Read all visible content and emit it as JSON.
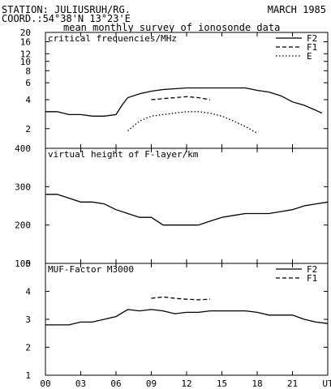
{
  "header": {
    "station": "STATION: JULIUSRUH/RG.",
    "coord": "COORD.:54°38'N 13°23'E",
    "date": "MARCH 1985",
    "subtitle": "mean monthly survey of ionosonde data"
  },
  "chart_data": [
    {
      "type": "line",
      "title": "critical frequencies/MHz",
      "yscale": "log",
      "ylim": [
        1.25,
        20
      ],
      "yticks": [
        2,
        4,
        6,
        8,
        10,
        12,
        16,
        20
      ],
      "xlim": [
        0,
        24
      ],
      "xticks": [
        0,
        3,
        6,
        9,
        12,
        15,
        18,
        21,
        24
      ],
      "xticklabels": [
        "00",
        "03",
        "06",
        "09",
        "12",
        "15",
        "18",
        "21",
        "UT"
      ],
      "legend_position": "top-right",
      "series": [
        {
          "name": "F2",
          "style": "solid",
          "x": [
            0,
            1,
            2,
            3,
            4,
            5,
            6,
            6.5,
            7,
            8,
            9,
            10,
            11,
            12,
            13,
            14,
            15,
            16,
            17,
            18,
            19,
            20,
            21,
            22,
            23,
            23.5
          ],
          "y": [
            3.0,
            3.0,
            2.8,
            2.8,
            2.7,
            2.7,
            2.8,
            3.5,
            4.2,
            4.6,
            4.9,
            5.1,
            5.2,
            5.3,
            5.3,
            5.3,
            5.3,
            5.3,
            5.3,
            5.0,
            4.8,
            4.4,
            3.8,
            3.5,
            3.1,
            2.9
          ]
        },
        {
          "name": "F1",
          "style": "dashed",
          "x": [
            9,
            10,
            11,
            12,
            13,
            14
          ],
          "y": [
            4.0,
            4.1,
            4.2,
            4.3,
            4.2,
            4.0
          ]
        },
        {
          "name": "E",
          "style": "dotted",
          "x": [
            7,
            8,
            9,
            10,
            11,
            12,
            13,
            14,
            15,
            16,
            17,
            18
          ],
          "y": [
            1.9,
            2.4,
            2.7,
            2.8,
            2.9,
            3.0,
            3.0,
            2.9,
            2.7,
            2.4,
            2.1,
            1.8
          ]
        }
      ]
    },
    {
      "type": "line",
      "title": "virtual height of F-layer/km",
      "yscale": "linear",
      "ylim": [
        100,
        400
      ],
      "yticks": [
        100,
        200,
        300,
        400
      ],
      "xlim": [
        0,
        24
      ],
      "xticks": [
        0,
        3,
        6,
        9,
        12,
        15,
        18,
        21,
        24
      ],
      "series": [
        {
          "name": "",
          "style": "solid",
          "x": [
            0,
            1,
            2,
            3,
            4,
            5,
            6,
            7,
            8,
            9,
            10,
            11,
            12,
            13,
            14,
            15,
            16,
            17,
            18,
            19,
            20,
            21,
            22,
            23,
            24
          ],
          "y": [
            280,
            280,
            270,
            260,
            260,
            255,
            240,
            230,
            220,
            220,
            200,
            200,
            200,
            200,
            210,
            220,
            225,
            230,
            230,
            230,
            235,
            240,
            250,
            255,
            260
          ]
        }
      ]
    },
    {
      "type": "line",
      "title": "MUF-Factor M3000",
      "yscale": "linear",
      "ylim": [
        1,
        5
      ],
      "yticks": [
        1,
        2,
        3,
        4,
        5
      ],
      "xlim": [
        0,
        24
      ],
      "xticks": [
        0,
        3,
        6,
        9,
        12,
        15,
        18,
        21,
        24
      ],
      "legend_position": "top-right",
      "series": [
        {
          "name": "F2",
          "style": "solid",
          "x": [
            0,
            1,
            2,
            3,
            4,
            5,
            6,
            7,
            8,
            9,
            10,
            11,
            12,
            13,
            14,
            15,
            16,
            17,
            18,
            19,
            20,
            21,
            22,
            23,
            24
          ],
          "y": [
            2.8,
            2.8,
            2.8,
            2.9,
            2.9,
            3.0,
            3.1,
            3.35,
            3.3,
            3.35,
            3.3,
            3.2,
            3.25,
            3.25,
            3.3,
            3.3,
            3.3,
            3.3,
            3.25,
            3.15,
            3.15,
            3.15,
            3.0,
            2.9,
            2.85
          ]
        },
        {
          "name": "F1",
          "style": "dashed",
          "x": [
            9,
            10,
            11,
            12,
            13,
            14
          ],
          "y": [
            3.75,
            3.8,
            3.75,
            3.72,
            3.7,
            3.72
          ]
        }
      ]
    }
  ]
}
